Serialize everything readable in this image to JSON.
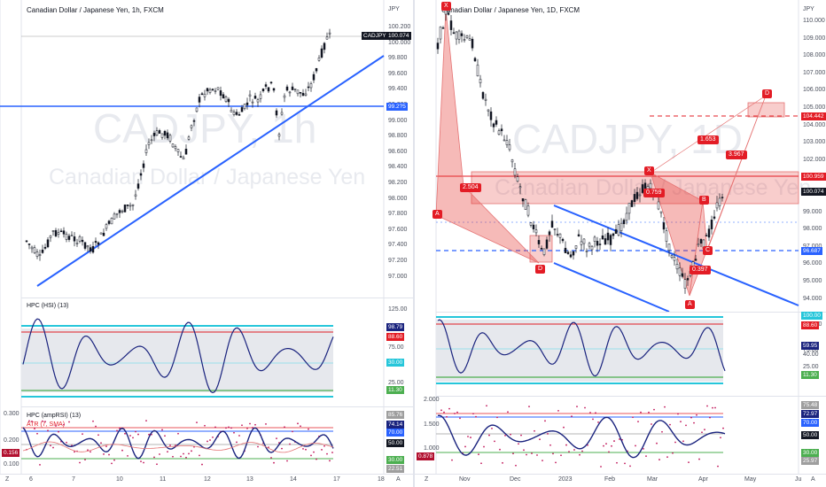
{
  "left": {
    "title": "Canadian Dollar / Japanese Yen, 1h, FXCM",
    "currency": "JPY",
    "watermark_symbol": "CADJPY, 1h",
    "watermark_name": "Canadian Dollar / Japanese Yen",
    "price_ticks": [
      "100.200",
      "100.000",
      "99.800",
      "99.600",
      "99.400",
      "99.200",
      "99.000",
      "98.800",
      "98.600",
      "98.400",
      "98.200",
      "98.000",
      "97.800",
      "97.600",
      "97.400",
      "97.200",
      "97.000"
    ],
    "symbol_tag": "CADJPY",
    "last_price": "100.074",
    "hline_price": "99.2?5",
    "indicator1": {
      "title": "HPC (HSI) (13)",
      "ticks": [
        "125.00",
        "75.00",
        "25.00"
      ],
      "tags": [
        "98.79",
        "88.60",
        "30.00",
        "11.30"
      ]
    },
    "indicator2": {
      "title": "HPC (ampRSI) (13)",
      "title2": "ATR (7, SMA)",
      "ticks_left": [
        "0.300",
        "0.200",
        "0.100"
      ],
      "atr_value": "0.156",
      "tags": [
        "85.76",
        "74.14",
        "70.00",
        "50.00",
        "30.00",
        "22.51"
      ]
    },
    "x_ticks": [
      "6",
      "7",
      "10",
      "11",
      "12",
      "13",
      "14",
      "17",
      "18"
    ],
    "corner_left": "Z",
    "corner_right": "A"
  },
  "right": {
    "title": "Canadian Dollar / Japanese Yen, 1D, FXCM",
    "currency": "JPY",
    "watermark_symbol": "CADJPY, 1D",
    "watermark_name": "Canadian Dollar / Japanese Yen",
    "price_ticks": [
      "110.000",
      "109.000",
      "108.000",
      "107.000",
      "106.000",
      "105.000",
      "104.000",
      "103.000",
      "102.000",
      "101.000",
      "100.000",
      "99.000",
      "98.000",
      "97.000",
      "96.000",
      "95.000",
      "94.000"
    ],
    "tags": {
      "d_level": "104.442",
      "x_level": "100.959",
      "last": "100.074",
      "c_level": "96.687"
    },
    "pattern_labels": [
      "X",
      "A",
      "B",
      "C",
      "D",
      "D",
      "X",
      "A",
      "B",
      "C"
    ],
    "ratios": {
      "r1": "2.504",
      "r2": "0.759",
      "r3": "1.653",
      "r4": "3.967",
      "r5": "0.397"
    },
    "indicator1": {
      "ticks": [
        "125.00",
        "75.00",
        "40.00",
        "25.00"
      ],
      "tags": [
        "100.00",
        "88.60",
        "59.95",
        "11.30"
      ]
    },
    "indicator2": {
      "ticks_left": [
        "2.000",
        "1.500",
        "1.000"
      ],
      "atr_value": "0.878",
      "tags": [
        "75.48",
        "72.97",
        "70.00",
        "50.00",
        "30.00",
        "25.97"
      ]
    },
    "x_ticks": [
      "Nov",
      "Dec",
      "2023",
      "Feb",
      "Mar",
      "Apr",
      "May",
      "Ju"
    ],
    "corner_left": "Z",
    "corner_right": "A"
  },
  "colors": {
    "up": "#131722",
    "trendline": "#2962ff",
    "red": "#e31c25",
    "teal": "#26c6da",
    "navy": "#1a237e",
    "green": "#4caf50"
  }
}
